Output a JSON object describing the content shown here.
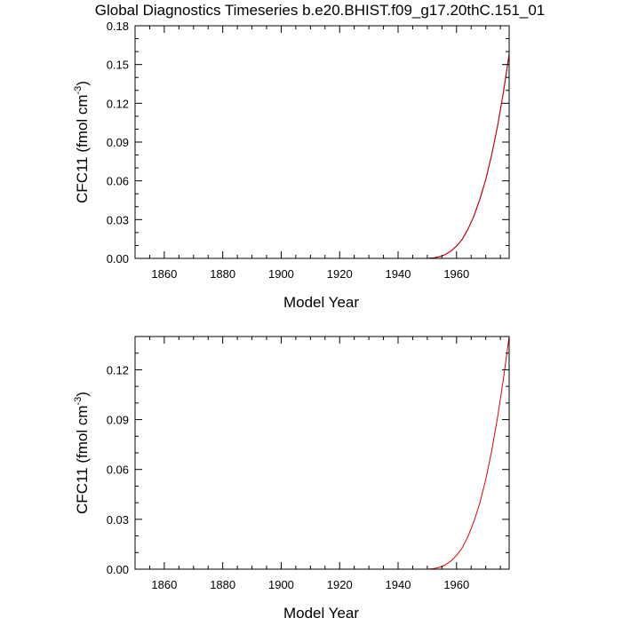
{
  "chart_data": [
    {
      "type": "line",
      "title": "Global Diagnostics Timeseries b.e20.BHIST.f09_g17.20thC.151_01",
      "xlabel": "Model Year",
      "ylabel": {
        "prefix": "CFC11 (fmol cm",
        "superscript": "-3",
        "suffix": ")"
      },
      "xlim": [
        1850,
        1978
      ],
      "ylim": [
        0,
        0.18
      ],
      "xticks": [
        1860,
        1880,
        1900,
        1920,
        1940,
        1960
      ],
      "xtick_labels": [
        "1860",
        "1880",
        "1900",
        "1920",
        "1940",
        "1960"
      ],
      "yticks": [
        0,
        0.03,
        0.06,
        0.09,
        0.12,
        0.15,
        0.18
      ],
      "ytick_labels": [
        "0.00",
        "0.03",
        "0.06",
        "0.09",
        "0.12",
        "0.15",
        "0.18"
      ],
      "series": [
        {
          "name": "black",
          "color": "#000000",
          "x": [
            1850,
            1940,
            1950,
            1952,
            1954,
            1956,
            1958,
            1960,
            1962,
            1964,
            1966,
            1968,
            1970,
            1972,
            1974,
            1976,
            1978
          ],
          "y": [
            0,
            0,
            0,
            0.0003,
            0.0012,
            0.0028,
            0.0055,
            0.0095,
            0.015,
            0.023,
            0.033,
            0.046,
            0.061,
            0.08,
            0.102,
            0.128,
            0.158
          ]
        },
        {
          "name": "red",
          "color": "#e00000",
          "x": [
            1850,
            1940,
            1950,
            1952,
            1954,
            1956,
            1958,
            1960,
            1962,
            1964,
            1966,
            1968,
            1970,
            1972,
            1974,
            1976,
            1978
          ],
          "y": [
            0,
            0,
            0,
            0.0003,
            0.0012,
            0.0028,
            0.0055,
            0.0095,
            0.015,
            0.023,
            0.033,
            0.046,
            0.061,
            0.08,
            0.102,
            0.128,
            0.158
          ]
        }
      ]
    },
    {
      "type": "line",
      "title": "",
      "xlabel": "Model Year",
      "ylabel": {
        "prefix": "CFC11 (fmol cm",
        "superscript": "-3",
        "suffix": ")"
      },
      "xlim": [
        1850,
        1978
      ],
      "ylim": [
        0,
        0.14
      ],
      "xticks": [
        1860,
        1880,
        1900,
        1920,
        1940,
        1960
      ],
      "xtick_labels": [
        "1860",
        "1880",
        "1900",
        "1920",
        "1940",
        "1960"
      ],
      "yticks": [
        0,
        0.03,
        0.06,
        0.09,
        0.12
      ],
      "ytick_labels": [
        "0.00",
        "0.03",
        "0.06",
        "0.09",
        "0.12"
      ],
      "series": [
        {
          "name": "red",
          "color": "#e00000",
          "x": [
            1850,
            1940,
            1950,
            1952,
            1954,
            1956,
            1958,
            1960,
            1962,
            1964,
            1966,
            1968,
            1970,
            1972,
            1974,
            1976,
            1978
          ],
          "y": [
            0,
            0,
            0,
            0.0003,
            0.001,
            0.0024,
            0.0048,
            0.0083,
            0.013,
            0.02,
            0.029,
            0.04,
            0.054,
            0.071,
            0.091,
            0.114,
            0.14
          ]
        }
      ]
    }
  ]
}
